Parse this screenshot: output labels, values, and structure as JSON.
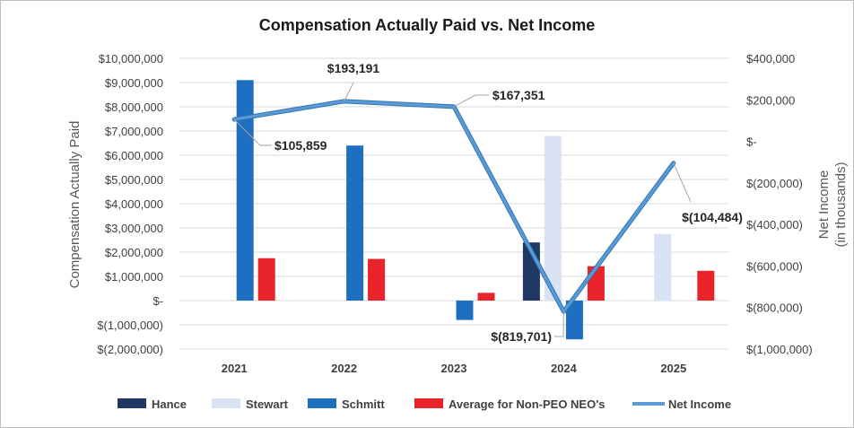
{
  "chart_data": {
    "type": "bar",
    "title": "Compensation Actually Paid vs. Net Income",
    "categories": [
      "2021",
      "2022",
      "2023",
      "2024",
      "2025"
    ],
    "ylabel": "Compensation Actually Paid",
    "y2label": [
      "Net Income",
      "(in thousands)"
    ],
    "ylim": [
      -2000000,
      10000000
    ],
    "y2lim": [
      -1000000,
      400000
    ],
    "yticks": [
      "$10,000,000",
      "$9,000,000",
      "$8,000,000",
      "$7,000,000",
      "$6,000,000",
      "$5,000,000",
      "$4,000,000",
      "$3,000,000",
      "$2,000,000",
      "$1,000,000",
      "$-",
      "$(1,000,000)",
      "$(2,000,000)"
    ],
    "y2ticks": [
      "$400,000",
      "$200,000",
      "$-",
      "$(200,000)",
      "$(400,000)",
      "$(600,000)",
      "$(800,000)",
      "$(1,000,000)"
    ],
    "series": [
      {
        "name": "Hance",
        "color": "#203864",
        "values": [
          0,
          0,
          0,
          2400000,
          0
        ]
      },
      {
        "name": "Stewart",
        "color": "#dae3f3",
        "values": [
          0,
          0,
          0,
          6800000,
          2750000
        ]
      },
      {
        "name": "Schmitt",
        "color": "#1f6fc1",
        "values": [
          9100000,
          6400000,
          -800000,
          -1600000,
          0
        ]
      },
      {
        "name": "Average for Non-PEO NEO's",
        "color": "#e8242a",
        "values": [
          1750000,
          1720000,
          320000,
          1420000,
          1230000
        ]
      }
    ],
    "line_series": {
      "name": "Net Income",
      "color": "#5b9bd5",
      "values": [
        105859,
        193191,
        167351,
        -819701,
        -104484
      ],
      "labels": [
        "$105,859",
        "$193,191",
        "$167,351",
        "$(819,701)",
        "$(104,484)"
      ]
    },
    "legend_position": "bottom"
  }
}
